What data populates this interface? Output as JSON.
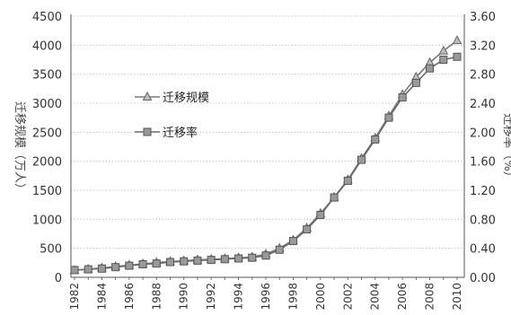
{
  "chart_data": {
    "type": "line",
    "title": "",
    "x": [
      1982,
      1983,
      1984,
      1985,
      1986,
      1987,
      1988,
      1989,
      1990,
      1991,
      1992,
      1993,
      1994,
      1995,
      1996,
      1997,
      1998,
      1999,
      2000,
      2001,
      2002,
      2003,
      2004,
      2005,
      2006,
      2007,
      2008,
      2009,
      2010
    ],
    "x_tick_labels": [
      "1982",
      "1984",
      "1986",
      "1988",
      "1990",
      "1992",
      "1994",
      "1996",
      "1998",
      "2000",
      "2002",
      "2004",
      "2006",
      "2008",
      "2010"
    ],
    "ylabel_left": "迁移规模（万人）",
    "ylabel_right": "迁移率（%）",
    "ylim_left": [
      0,
      4500
    ],
    "ylim_right": [
      0.0,
      3.6
    ],
    "y_left_ticks": [
      "0",
      "500",
      "1000",
      "1500",
      "2000",
      "2500",
      "3000",
      "3500",
      "4000",
      "4500"
    ],
    "y_right_ticks": [
      "0.00",
      "0.40",
      "0.80",
      "1.20",
      "1.60",
      "2.00",
      "2.40",
      "2.80",
      "3.20",
      "3.60"
    ],
    "grid": "dotted horizontal",
    "legend_position": "left-center",
    "series": [
      {
        "name": "迁移规模",
        "axis": "left",
        "marker": "triangle",
        "color": "#7a7a7a",
        "values": [
          120,
          140,
          160,
          185,
          210,
          230,
          255,
          270,
          285,
          300,
          310,
          320,
          335,
          350,
          400,
          500,
          640,
          850,
          1100,
          1380,
          1680,
          2050,
          2400,
          2780,
          3150,
          3450,
          3700,
          3900,
          4080
        ]
      },
      {
        "name": "迁移率",
        "axis": "right",
        "marker": "square",
        "color": "#6a6a6a",
        "values": [
          0.1,
          0.11,
          0.12,
          0.14,
          0.16,
          0.18,
          0.19,
          0.21,
          0.22,
          0.23,
          0.24,
          0.25,
          0.26,
          0.27,
          0.3,
          0.38,
          0.5,
          0.66,
          0.86,
          1.1,
          1.33,
          1.62,
          1.9,
          2.2,
          2.48,
          2.68,
          2.88,
          3.0,
          3.04
        ]
      }
    ]
  }
}
